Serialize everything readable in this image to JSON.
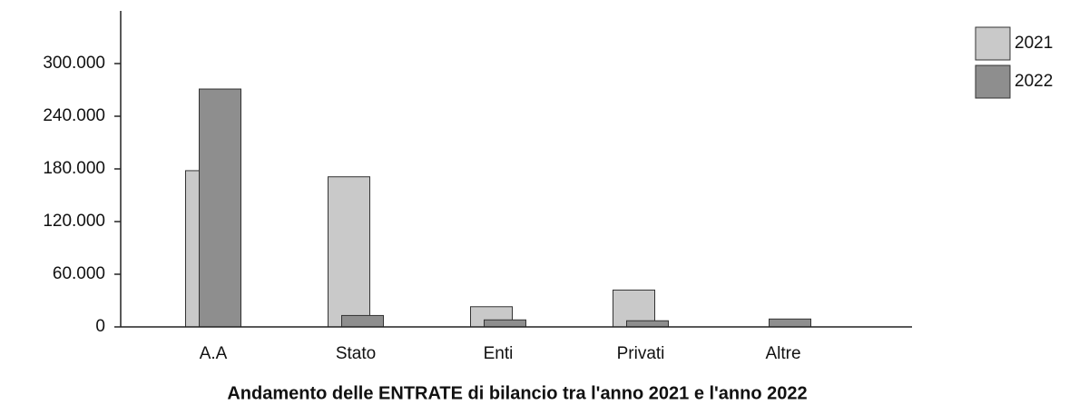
{
  "chart_data": {
    "type": "bar",
    "title": "Andamento delle ENTRATE di bilancio tra l'anno 2021 e l'anno 2022",
    "categories": [
      "A.A",
      "Stato",
      "Enti",
      "Privati",
      "Altre"
    ],
    "series": [
      {
        "name": "2021",
        "color": "#c9c9c9",
        "values": [
          178000,
          171000,
          23000,
          42000,
          0
        ]
      },
      {
        "name": "2022",
        "color": "#8e8e8e",
        "values": [
          271000,
          13000,
          8000,
          7000,
          9000
        ]
      }
    ],
    "ylim": [
      0,
      360000
    ],
    "yticks": [
      0,
      {
        "value": 60000,
        "label": "60.000"
      },
      {
        "value": 120000,
        "label": "120.000"
      },
      {
        "value": 180000,
        "label": "180.000"
      },
      {
        "value": 240000,
        "label": "240.000"
      },
      {
        "value": 300000,
        "label": "300.000"
      }
    ],
    "grid": false,
    "legend": "top-right"
  }
}
